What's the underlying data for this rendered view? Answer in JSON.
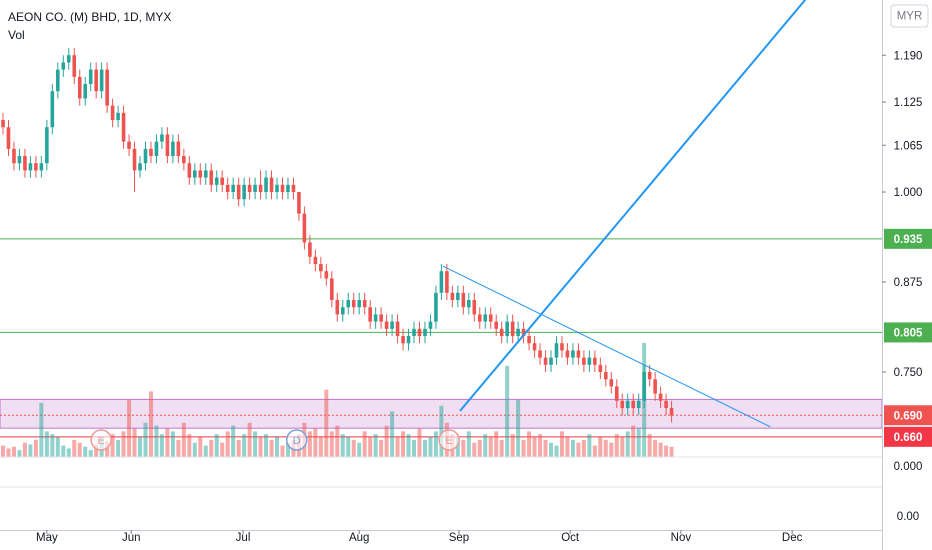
{
  "chart_data": {
    "type": "candlestick",
    "title": "AEON CO. (M) BHD, 1D, MYX",
    "volume_label": "Vol",
    "currency": "MYR",
    "up_color": "#26a69a",
    "down_color": "#ef5350",
    "xlim": [
      -0.55,
      160.4
    ],
    "xticks": [
      {
        "value": 8,
        "label": "May"
      },
      {
        "value": 23.4,
        "label": "Jun"
      },
      {
        "value": 43.8,
        "label": "Jul"
      },
      {
        "value": 65,
        "label": "Aug"
      },
      {
        "value": 83.2,
        "label": "Sep"
      },
      {
        "value": 103.5,
        "label": "Oct"
      },
      {
        "value": 123.7,
        "label": "Nov"
      },
      {
        "value": 144,
        "label": "Dec"
      }
    ],
    "ylim": [
      0.5306,
      1.2667
    ],
    "yticks": [
      {
        "value": 0.75,
        "label": "0.750"
      },
      0.875,
      {
        "value": 1.0,
        "label": "1.000"
      },
      1.065,
      1.125,
      {
        "value": 1.19,
        "label": "1.190"
      }
    ],
    "y2lim": [
      0,
      200
    ],
    "lower_pane_labels": [
      "0.000",
      "0.00"
    ],
    "open": [
      1.1,
      1.09,
      1.06,
      1.04,
      1.05,
      1.03,
      1.04,
      1.03,
      1.04,
      1.09,
      1.14,
      1.17,
      1.18,
      1.19,
      1.16,
      1.13,
      1.15,
      1.17,
      1.14,
      1.17,
      1.12,
      1.1,
      1.11,
      1.07,
      1.06,
      1.03,
      1.04,
      1.06,
      1.05,
      1.07,
      1.08,
      1.05,
      1.07,
      1.05,
      1.04,
      1.02,
      1.03,
      1.02,
      1.03,
      1.01,
      1.02,
      1.01,
      1.0,
      1.01,
      0.99,
      1.01,
      1.0,
      1.01,
      1.0,
      1.02,
      1.0,
      1.01,
      1.0,
      1.01,
      1.0,
      0.97,
      0.93,
      0.91,
      0.9,
      0.89,
      0.88,
      0.85,
      0.83,
      0.84,
      0.85,
      0.84,
      0.85,
      0.84,
      0.82,
      0.83,
      0.82,
      0.81,
      0.82,
      0.8,
      0.79,
      0.8,
      0.81,
      0.8,
      0.81,
      0.82,
      0.86,
      0.89,
      0.86,
      0.85,
      0.86,
      0.84,
      0.85,
      0.83,
      0.82,
      0.83,
      0.82,
      0.81,
      0.8,
      0.82,
      0.8,
      0.81,
      0.8,
      0.79,
      0.78,
      0.77,
      0.76,
      0.77,
      0.79,
      0.78,
      0.77,
      0.78,
      0.77,
      0.76,
      0.77,
      0.76,
      0.75,
      0.74,
      0.73,
      0.71,
      0.7,
      0.71,
      0.7,
      0.71,
      0.75,
      0.74,
      0.72,
      0.71,
      0.7
    ],
    "high": [
      1.11,
      1.1,
      1.07,
      1.06,
      1.06,
      1.05,
      1.05,
      1.05,
      1.1,
      1.15,
      1.18,
      1.19,
      1.2,
      1.2,
      1.17,
      1.16,
      1.18,
      1.18,
      1.18,
      1.18,
      1.13,
      1.12,
      1.12,
      1.08,
      1.07,
      1.05,
      1.07,
      1.07,
      1.08,
      1.09,
      1.09,
      1.08,
      1.08,
      1.06,
      1.05,
      1.04,
      1.04,
      1.04,
      1.04,
      1.03,
      1.03,
      1.02,
      1.02,
      1.02,
      1.02,
      1.02,
      1.02,
      1.03,
      1.03,
      1.03,
      1.02,
      1.02,
      1.02,
      1.02,
      1.0,
      0.98,
      0.94,
      0.92,
      0.91,
      0.9,
      0.89,
      0.86,
      0.85,
      0.86,
      0.86,
      0.86,
      0.86,
      0.85,
      0.84,
      0.84,
      0.83,
      0.83,
      0.83,
      0.81,
      0.81,
      0.82,
      0.82,
      0.82,
      0.83,
      0.87,
      0.9,
      0.9,
      0.87,
      0.87,
      0.87,
      0.86,
      0.86,
      0.84,
      0.84,
      0.84,
      0.83,
      0.82,
      0.83,
      0.83,
      0.82,
      0.82,
      0.81,
      0.8,
      0.79,
      0.78,
      0.78,
      0.8,
      0.8,
      0.79,
      0.79,
      0.79,
      0.78,
      0.78,
      0.78,
      0.77,
      0.76,
      0.75,
      0.74,
      0.72,
      0.72,
      0.72,
      0.72,
      0.76,
      0.76,
      0.75,
      0.73,
      0.72,
      0.71
    ],
    "low": [
      1.08,
      1.05,
      1.03,
      1.03,
      1.02,
      1.02,
      1.02,
      1.02,
      1.03,
      1.08,
      1.13,
      1.16,
      1.17,
      1.15,
      1.12,
      1.12,
      1.14,
      1.13,
      1.13,
      1.11,
      1.09,
      1.09,
      1.06,
      1.05,
      1.0,
      1.02,
      1.03,
      1.04,
      1.04,
      1.06,
      1.04,
      1.04,
      1.04,
      1.03,
      1.01,
      1.01,
      1.01,
      1.01,
      1.0,
      1.0,
      1.0,
      0.99,
      0.99,
      0.98,
      0.98,
      0.99,
      0.99,
      0.99,
      0.99,
      0.99,
      0.99,
      0.99,
      0.99,
      0.99,
      0.96,
      0.92,
      0.9,
      0.89,
      0.88,
      0.87,
      0.84,
      0.82,
      0.82,
      0.83,
      0.83,
      0.83,
      0.83,
      0.81,
      0.81,
      0.81,
      0.8,
      0.8,
      0.79,
      0.78,
      0.78,
      0.79,
      0.79,
      0.79,
      0.8,
      0.81,
      0.85,
      0.85,
      0.84,
      0.84,
      0.83,
      0.83,
      0.82,
      0.81,
      0.81,
      0.81,
      0.8,
      0.79,
      0.79,
      0.79,
      0.79,
      0.79,
      0.78,
      0.77,
      0.76,
      0.75,
      0.75,
      0.76,
      0.77,
      0.76,
      0.76,
      0.76,
      0.75,
      0.75,
      0.75,
      0.74,
      0.73,
      0.72,
      0.7,
      0.69,
      0.69,
      0.69,
      0.69,
      0.7,
      0.73,
      0.71,
      0.7,
      0.69,
      0.68
    ],
    "close": [
      1.09,
      1.06,
      1.04,
      1.05,
      1.03,
      1.04,
      1.03,
      1.04,
      1.09,
      1.14,
      1.17,
      1.18,
      1.19,
      1.16,
      1.13,
      1.15,
      1.17,
      1.14,
      1.17,
      1.12,
      1.1,
      1.11,
      1.07,
      1.06,
      1.03,
      1.04,
      1.06,
      1.05,
      1.07,
      1.08,
      1.05,
      1.07,
      1.05,
      1.04,
      1.02,
      1.03,
      1.02,
      1.03,
      1.01,
      1.02,
      1.01,
      1.0,
      1.01,
      0.99,
      1.01,
      1.0,
      1.01,
      1.0,
      1.02,
      1.0,
      1.01,
      1.0,
      1.01,
      1.0,
      0.97,
      0.93,
      0.91,
      0.9,
      0.89,
      0.88,
      0.85,
      0.83,
      0.84,
      0.85,
      0.84,
      0.85,
      0.84,
      0.82,
      0.83,
      0.82,
      0.81,
      0.82,
      0.8,
      0.79,
      0.8,
      0.81,
      0.8,
      0.81,
      0.82,
      0.86,
      0.89,
      0.86,
      0.85,
      0.86,
      0.84,
      0.85,
      0.83,
      0.82,
      0.83,
      0.82,
      0.81,
      0.8,
      0.82,
      0.8,
      0.81,
      0.8,
      0.79,
      0.78,
      0.77,
      0.76,
      0.77,
      0.79,
      0.78,
      0.77,
      0.78,
      0.77,
      0.76,
      0.77,
      0.76,
      0.75,
      0.74,
      0.73,
      0.71,
      0.7,
      0.71,
      0.7,
      0.71,
      0.75,
      0.74,
      0.72,
      0.71,
      0.7,
      0.69
    ],
    "volume": [
      20,
      15,
      18,
      12,
      25,
      22,
      30,
      95,
      45,
      40,
      35,
      20,
      15,
      30,
      25,
      18,
      12,
      22,
      35,
      28,
      40,
      30,
      45,
      100,
      50,
      35,
      60,
      115,
      55,
      40,
      50,
      45,
      30,
      60,
      40,
      25,
      35,
      20,
      30,
      40,
      25,
      45,
      55,
      30,
      40,
      60,
      45,
      35,
      40,
      30,
      35,
      20,
      25,
      30,
      40,
      60,
      45,
      50,
      35,
      118,
      45,
      55,
      40,
      35,
      30,
      25,
      45,
      35,
      40,
      30,
      55,
      80,
      35,
      45,
      40,
      30,
      50,
      30,
      35,
      45,
      90,
      60,
      40,
      35,
      30,
      45,
      25,
      30,
      40,
      35,
      45,
      30,
      160,
      40,
      100,
      30,
      45,
      35,
      40,
      30,
      25,
      20,
      45,
      35,
      30,
      25,
      30,
      40,
      20,
      35,
      30,
      25,
      40,
      35,
      45,
      55,
      50,
      200,
      40,
      30,
      25,
      20,
      18
    ],
    "zone": {
      "ylim": [
        0.672,
        0.712
      ],
      "color": "#9c27b0"
    },
    "hlines": [
      {
        "value": 0.935,
        "color": "#4caf50",
        "style": "solid"
      },
      {
        "value": 0.805,
        "color": "#4caf50",
        "style": "solid"
      },
      {
        "value": {
          "value": 0.69,
          "label": "0.690"
        },
        "color": "#ef5350",
        "style": "dotted"
      },
      {
        "value": {
          "value": 0.66,
          "label": "0.660"
        },
        "color": "#f23645",
        "style": "solid"
      }
    ],
    "events": [
      {
        "label": "E",
        "x": 17.9,
        "color": "#ef9a9a"
      },
      {
        "label": "D",
        "x": 53.6,
        "color": "#7b9fd8"
      },
      {
        "label": "E",
        "x": 81.4,
        "color": "#ef9a9a"
      }
    ],
    "drawings": [
      {
        "start": {
          "x": 83.4,
          "y": 0.696
        },
        "end": {
          "x": 146.4,
          "y": 1.267
        },
        "color": "#2196f3",
        "width": 2
      },
      {
        "start": {
          "x": 80.3,
          "y": 0.897
        },
        "end": {
          "x": 140.0,
          "y": 0.674
        },
        "color": "#2196f3",
        "width": 1
      }
    ]
  }
}
